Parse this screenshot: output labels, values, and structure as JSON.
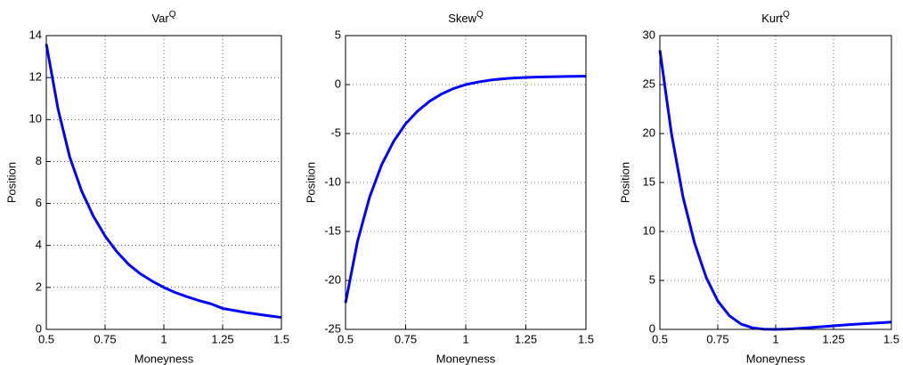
{
  "chart_data": [
    {
      "type": "line",
      "title": "Var",
      "title_superscript": "Q",
      "x_label": "Moneyness",
      "y_label": "Position",
      "x": [
        0.5,
        0.55,
        0.6,
        0.65,
        0.7,
        0.75,
        0.8,
        0.85,
        0.9,
        0.95,
        1.0,
        1.05,
        1.1,
        1.15,
        1.2,
        1.25,
        1.3,
        1.35,
        1.4,
        1.45,
        1.5
      ],
      "series": [
        {
          "color": "#0000ff",
          "values": [
            13.6,
            10.5,
            8.2,
            6.6,
            5.4,
            4.45,
            3.7,
            3.1,
            2.65,
            2.3,
            2.0,
            1.75,
            1.55,
            1.37,
            1.22,
            1.0,
            0.9,
            0.8,
            0.72,
            0.64,
            0.57
          ]
        }
      ],
      "xlim": [
        0.5,
        1.5
      ],
      "xticks": [
        0.5,
        0.75,
        1,
        1.25,
        1.5
      ],
      "ylim": [
        0,
        14
      ],
      "yticks": [
        0,
        2,
        4,
        6,
        8,
        10,
        12,
        14
      ],
      "grid": true
    },
    {
      "type": "line",
      "title": "Skew",
      "title_superscript": "Q",
      "x_label": "Moneyness",
      "y_label": "Position",
      "x": [
        0.5,
        0.55,
        0.6,
        0.65,
        0.7,
        0.75,
        0.8,
        0.85,
        0.9,
        0.95,
        1.0,
        1.05,
        1.1,
        1.15,
        1.2,
        1.25,
        1.3,
        1.35,
        1.4,
        1.45,
        1.5
      ],
      "series": [
        {
          "color": "#0000ff",
          "values": [
            -22.3,
            -16,
            -11.5,
            -8.2,
            -5.8,
            -4.0,
            -2.7,
            -1.7,
            -0.95,
            -0.4,
            0,
            0.25,
            0.45,
            0.58,
            0.67,
            0.73,
            0.77,
            0.8,
            0.82,
            0.84,
            0.85
          ]
        }
      ],
      "xlim": [
        0.5,
        1.5
      ],
      "xticks": [
        0.5,
        0.75,
        1,
        1.25,
        1.5
      ],
      "ylim": [
        -25,
        5
      ],
      "yticks": [
        -25,
        -20,
        -15,
        -10,
        -5,
        0,
        5
      ],
      "grid": true
    },
    {
      "type": "line",
      "title": "Kurt",
      "title_superscript": "Q",
      "x_label": "Moneyness",
      "y_label": "Position",
      "x": [
        0.5,
        0.55,
        0.6,
        0.65,
        0.7,
        0.75,
        0.8,
        0.85,
        0.9,
        0.95,
        1.0,
        1.05,
        1.1,
        1.15,
        1.2,
        1.25,
        1.3,
        1.35,
        1.4,
        1.45,
        1.5
      ],
      "series": [
        {
          "color": "#0000ff",
          "values": [
            28.5,
            20,
            13.5,
            8.8,
            5.3,
            2.9,
            1.4,
            0.55,
            0.15,
            0.02,
            0,
            0.03,
            0.1,
            0.18,
            0.27,
            0.36,
            0.45,
            0.53,
            0.6,
            0.67,
            0.75
          ]
        }
      ],
      "xlim": [
        0.5,
        1.5
      ],
      "xticks": [
        0.5,
        0.75,
        1,
        1.25,
        1.5
      ],
      "ylim": [
        0,
        30
      ],
      "yticks": [
        0,
        5,
        10,
        15,
        20,
        25,
        30
      ],
      "grid": true
    }
  ]
}
